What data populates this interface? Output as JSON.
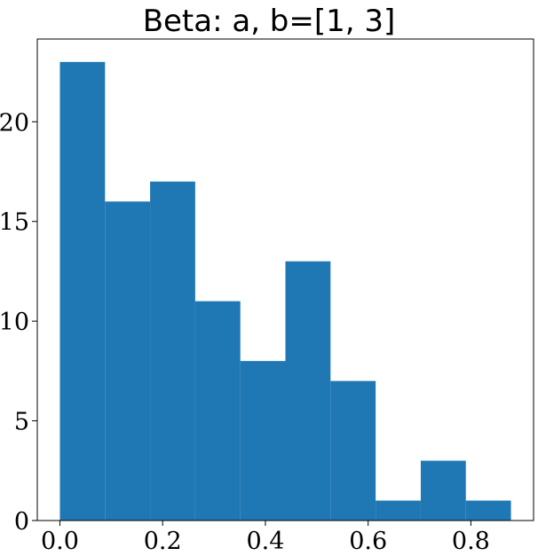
{
  "chart_data": {
    "type": "bar",
    "title": "Beta: a, b=[1, 3]",
    "xlabel": "",
    "ylabel": "",
    "bin_edges": [
      0.0,
      0.0878,
      0.1756,
      0.2634,
      0.3512,
      0.439,
      0.5268,
      0.6146,
      0.7024,
      0.7902,
      0.878
    ],
    "values": [
      23,
      16,
      17,
      11,
      8,
      13,
      7,
      1,
      3,
      1
    ],
    "xlim": [
      -0.044,
      0.922
    ],
    "ylim": [
      0,
      24.15
    ],
    "xticks": [
      0.0,
      0.2,
      0.4,
      0.6,
      0.8
    ],
    "xtick_labels": [
      "0.0",
      "0.2",
      "0.4",
      "0.6",
      "0.8"
    ],
    "yticks": [
      0,
      5,
      10,
      15,
      20
    ],
    "ytick_labels": [
      "0",
      "5",
      "10",
      "15",
      "20"
    ],
    "bar_color": "#1f77b4",
    "grid": false,
    "legend": "none"
  }
}
